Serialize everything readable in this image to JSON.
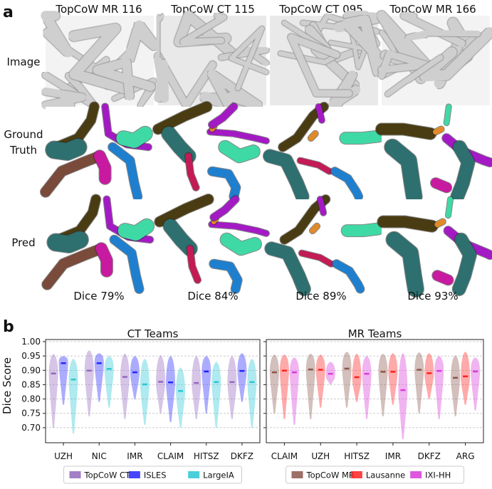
{
  "panel_a": {
    "letter": "a",
    "columns": [
      "TopCoW MR 116",
      "TopCoW CT 115",
      "TopCoW CT 095",
      "TopCoW MR 166"
    ],
    "rows": [
      "Image",
      "Ground\nTruth",
      "Pred"
    ],
    "dice": [
      "Dice 79%",
      "Dice 84%",
      "Dice 89%",
      "Dice 93%"
    ],
    "vessel_colors": {
      "brown": "#7a4a3a",
      "olive": "#4a3c12",
      "teal": "#2e6f6f",
      "magenta": "#c81aa0",
      "purple": "#a31ac4",
      "blue": "#1e7fcf",
      "mint": "#3fd9a6",
      "orange": "#e08a2a",
      "crimson": "#c21b55"
    }
  },
  "panel_b": {
    "letter": "b"
  },
  "chart_data": [
    {
      "type": "violin",
      "title": "CT Teams",
      "ylabel": "Dice Score",
      "ylim": [
        0.66,
        1.0
      ],
      "yticks": [
        "0.70",
        "0.75",
        "0.80",
        "0.85",
        "0.90",
        "0.95",
        "1.00"
      ],
      "grid": true,
      "categories": [
        "UZH",
        "NIC",
        "IMR",
        "CLAIM",
        "HITSZ",
        "DKFZ"
      ],
      "legend": {
        "placement": "bottom",
        "entries": [
          "TopCoW CT",
          "ISLES",
          "LargeIA"
        ]
      },
      "series": [
        {
          "name": "TopCoW CT",
          "color": "#9467bd",
          "median": [
            0.889,
            0.899,
            0.877,
            0.86,
            0.856,
            0.859
          ],
          "min": [
            0.7,
            0.74,
            0.73,
            0.75,
            0.73,
            0.73
          ],
          "max": [
            0.957,
            0.97,
            0.958,
            0.953,
            0.95,
            0.95
          ]
        },
        {
          "name": "ISLES",
          "color": "#2424ff",
          "median": [
            0.925,
            0.925,
            0.893,
            0.858,
            0.896,
            0.898
          ],
          "min": [
            0.78,
            0.79,
            0.8,
            0.72,
            0.75,
            0.79
          ],
          "max": [
            0.95,
            0.96,
            0.95,
            0.95,
            0.95,
            0.96
          ]
        },
        {
          "name": "LargeIA",
          "color": "#2ac7d4",
          "median": [
            0.868,
            0.905,
            0.851,
            0.828,
            0.859,
            0.859
          ],
          "min": [
            0.68,
            0.77,
            0.71,
            0.7,
            0.7,
            0.7
          ],
          "max": [
            0.94,
            0.95,
            0.94,
            0.91,
            0.93,
            0.94
          ]
        }
      ]
    },
    {
      "type": "violin",
      "title": "MR Teams",
      "ylim": [
        0.66,
        1.0
      ],
      "grid": true,
      "categories": [
        "CLAIM",
        "UZH",
        "HITSZ",
        "IMR",
        "DKFZ",
        "ARG"
      ],
      "legend": {
        "placement": "bottom",
        "entries": [
          "TopCoW MR",
          "Lausanne",
          "IXI-HH"
        ]
      },
      "series": [
        {
          "name": "TopCoW MR",
          "color": "#8c564b",
          "median": [
            0.893,
            0.903,
            0.906,
            0.895,
            0.902,
            0.874
          ],
          "min": [
            0.75,
            0.73,
            0.77,
            0.74,
            0.75,
            0.74
          ],
          "max": [
            0.955,
            0.958,
            0.965,
            0.958,
            0.963,
            0.952
          ]
        },
        {
          "name": "Lausanne",
          "color": "#ff2020",
          "median": [
            0.899,
            0.902,
            0.876,
            0.895,
            0.89,
            0.879
          ],
          "min": [
            0.73,
            0.77,
            0.79,
            0.78,
            0.8,
            0.78
          ],
          "max": [
            0.955,
            0.955,
            0.958,
            0.96,
            0.96,
            0.965
          ]
        },
        {
          "name": "IXI-HH",
          "color": "#d83ad8",
          "median": [
            0.893,
            0.888,
            0.888,
            0.831,
            0.898,
            0.896
          ],
          "min": [
            0.71,
            0.85,
            0.73,
            0.66,
            0.73,
            0.76
          ],
          "max": [
            0.945,
            0.93,
            0.95,
            0.96,
            0.95,
            0.945
          ]
        }
      ]
    }
  ]
}
